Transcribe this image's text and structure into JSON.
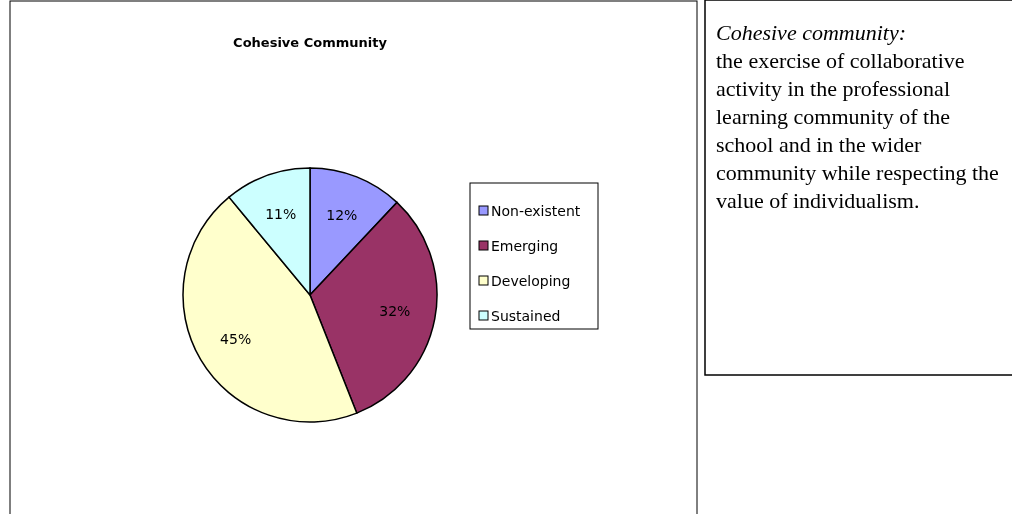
{
  "chart_data": [
    {
      "type": "pie",
      "title": "Cohesive Community",
      "categories": [
        "Non-existent",
        "Emerging",
        "Developing",
        "Sustained"
      ],
      "values": [
        12,
        32,
        45,
        11
      ],
      "colors": [
        "#9999ff",
        "#993366",
        "#ffffcc",
        "#ccffff"
      ],
      "value_labels": [
        "12%",
        "32%",
        "45%",
        "11%"
      ],
      "legend": "right"
    },
    {
      "type": "other",
      "title": "Cohesive community:",
      "annotations": [
        "the exercise of collaborative activity in the professional learning community of the school and in the wider community while respecting the value of individualism."
      ]
    }
  ]
}
